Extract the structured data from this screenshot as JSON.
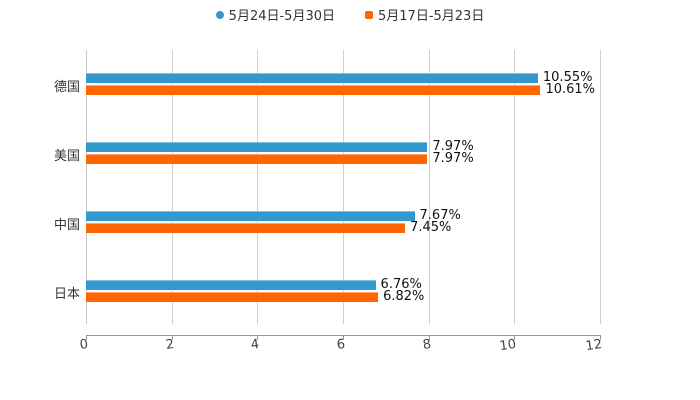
{
  "chart_data": {
    "type": "bar",
    "orientation": "horizontal",
    "categories": [
      "德国",
      "美国",
      "中国",
      "日本"
    ],
    "series": [
      {
        "name": "5月24日-5月30日",
        "color": "#3399cc",
        "values": [
          10.55,
          7.97,
          7.67,
          6.76
        ],
        "labels": [
          "10.55%",
          "7.97%",
          "7.67%",
          "6.76%"
        ]
      },
      {
        "name": "5月17日-5月23日",
        "color": "#ff6600",
        "values": [
          10.61,
          7.97,
          7.45,
          6.82
        ],
        "labels": [
          "10.61%",
          "7.97%",
          "7.45%",
          "6.82%"
        ]
      }
    ],
    "title": "",
    "xlabel": "",
    "ylabel": "",
    "xlim": [
      0,
      12
    ],
    "xticks": [
      "0",
      "2",
      "4",
      "6",
      "8",
      "10",
      "12"
    ],
    "grid": true,
    "legend_position": "top"
  },
  "legend": {
    "items": [
      {
        "label": "5月24日-5月30日",
        "color": "#3399cc",
        "marker": "circle"
      },
      {
        "label": "5月17日-5月23日",
        "color": "#ff6600",
        "marker": "square"
      }
    ]
  }
}
